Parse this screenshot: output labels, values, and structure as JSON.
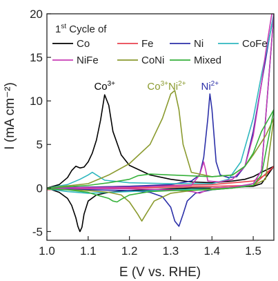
{
  "chart_data": {
    "type": "line",
    "xlabel": "E (V vs. RHE)",
    "ylabel": "I (mA cm⁻²)",
    "xlim": [
      1.0,
      1.55
    ],
    "ylim": [
      -6,
      20
    ],
    "xticks": [
      1.0,
      1.1,
      1.2,
      1.3,
      1.4,
      1.5
    ],
    "xtick_labels": [
      "1.0",
      "1.1",
      "1.2",
      "1.3",
      "1.4",
      "1.5"
    ],
    "yticks": [
      -5,
      0,
      5,
      10,
      15,
      20
    ],
    "ytick_labels": [
      "-5",
      "0",
      "5",
      "10",
      "15",
      "20"
    ],
    "legend": {
      "title_main": "1",
      "title_sup": "st",
      "title_rest": " Cycle of",
      "placement": "top-left"
    },
    "annotations": [
      {
        "text": "Co",
        "sup": "3+",
        "x": 1.14,
        "y": 11.3,
        "color": "#000000"
      },
      {
        "text": "Co",
        "sup": "3+",
        "text2": "Ni",
        "sup2": "2+",
        "x": 1.29,
        "y": 11.3,
        "color": "#8a9a2e"
      },
      {
        "text": "Ni",
        "sup": "2+",
        "x": 1.395,
        "y": 11.3,
        "color": "#2b2fa8"
      }
    ],
    "series": [
      {
        "name": "Co",
        "color": "#000000",
        "x": [
          1.0,
          1.03,
          1.05,
          1.06,
          1.07,
          1.08,
          1.09,
          1.1,
          1.11,
          1.12,
          1.13,
          1.14,
          1.15,
          1.16,
          1.18,
          1.2,
          1.25,
          1.3,
          1.35,
          1.4,
          1.45,
          1.48,
          1.5,
          1.52,
          1.55,
          1.52,
          1.5,
          1.45,
          1.4,
          1.35,
          1.3,
          1.25,
          1.2,
          1.15,
          1.12,
          1.1,
          1.09,
          1.085,
          1.08,
          1.075,
          1.07,
          1.06,
          1.05,
          1.03,
          1.0
        ],
        "y": [
          0.0,
          0.4,
          1.2,
          2.0,
          2.5,
          2.3,
          2.4,
          3.0,
          4.0,
          5.5,
          7.8,
          10.7,
          9.5,
          6.5,
          3.8,
          2.6,
          1.5,
          1.0,
          0.7,
          0.6,
          0.8,
          1.0,
          1.3,
          1.8,
          2.5,
          0.5,
          0.2,
          0.1,
          0.0,
          0.0,
          -0.1,
          -0.2,
          -0.3,
          -0.5,
          -0.8,
          -1.5,
          -3.0,
          -4.5,
          -5.0,
          -4.4,
          -3.4,
          -2.0,
          -1.2,
          -0.5,
          0.0
        ]
      },
      {
        "name": "Fe",
        "color": "#e8434f",
        "x": [
          1.0,
          1.2,
          1.4,
          1.5,
          1.53,
          1.55,
          1.5,
          1.4,
          1.2,
          1.0
        ],
        "y": [
          0.0,
          0.2,
          0.4,
          0.8,
          1.5,
          2.5,
          0.3,
          0.2,
          0.0,
          -0.2
        ]
      },
      {
        "name": "Ni",
        "color": "#2b2fa8",
        "x": [
          1.0,
          1.1,
          1.2,
          1.3,
          1.35,
          1.37,
          1.38,
          1.39,
          1.395,
          1.4,
          1.41,
          1.42,
          1.44,
          1.46,
          1.48,
          1.5,
          1.52,
          1.54,
          1.55,
          1.52,
          1.5,
          1.45,
          1.4,
          1.36,
          1.34,
          1.33,
          1.32,
          1.31,
          1.3,
          1.28,
          1.25,
          1.2,
          1.1,
          1.0
        ],
        "y": [
          0.0,
          0.1,
          0.2,
          0.4,
          0.8,
          1.5,
          3.5,
          8.0,
          10.8,
          9.0,
          3.0,
          1.5,
          1.2,
          1.3,
          2.5,
          6.5,
          12.0,
          17.5,
          20.0,
          2.0,
          0.5,
          0.0,
          -0.2,
          -0.6,
          -1.5,
          -3.0,
          -4.4,
          -3.8,
          -2.2,
          -1.0,
          -0.5,
          -0.3,
          -0.2,
          -0.1
        ]
      },
      {
        "name": "CoFe",
        "color": "#2fb7bf",
        "x": [
          1.0,
          1.05,
          1.08,
          1.1,
          1.11,
          1.12,
          1.14,
          1.2,
          1.3,
          1.4,
          1.44,
          1.47,
          1.5,
          1.52,
          1.54,
          1.55,
          1.52,
          1.5,
          1.45,
          1.4,
          1.3,
          1.2,
          1.1,
          1.05,
          1.0
        ],
        "y": [
          0.0,
          0.4,
          1.0,
          1.5,
          1.8,
          1.5,
          0.9,
          0.6,
          0.5,
          0.5,
          1.0,
          3.0,
          8.0,
          13.0,
          17.5,
          20.0,
          2.0,
          0.5,
          0.0,
          -0.1,
          -0.2,
          -0.4,
          -0.6,
          -0.4,
          -0.1
        ]
      },
      {
        "name": "NiFe",
        "color": "#c83bb4",
        "x": [
          1.0,
          1.2,
          1.35,
          1.37,
          1.38,
          1.385,
          1.39,
          1.42,
          1.45,
          1.48,
          1.5,
          1.52,
          1.53,
          1.545,
          1.55,
          1.52,
          1.5,
          1.45,
          1.4,
          1.37,
          1.35,
          1.3,
          1.2,
          1.0
        ],
        "y": [
          0.0,
          0.1,
          0.3,
          1.5,
          3.0,
          2.0,
          0.8,
          0.7,
          1.0,
          2.5,
          6.0,
          12.0,
          15.5,
          20.0,
          20.0,
          2.0,
          0.5,
          0.1,
          0.0,
          -0.6,
          -0.4,
          -0.2,
          -0.1,
          0.0
        ]
      },
      {
        "name": "CoNi",
        "color": "#8a9a2e",
        "x": [
          1.0,
          1.1,
          1.15,
          1.2,
          1.25,
          1.28,
          1.3,
          1.31,
          1.32,
          1.33,
          1.35,
          1.4,
          1.45,
          1.48,
          1.5,
          1.53,
          1.55,
          1.53,
          1.5,
          1.45,
          1.4,
          1.35,
          1.3,
          1.26,
          1.24,
          1.23,
          1.22,
          1.2,
          1.18,
          1.15,
          1.1,
          1.05,
          1.0
        ],
        "y": [
          0.0,
          0.5,
          1.5,
          2.8,
          5.0,
          8.0,
          10.8,
          11.2,
          9.0,
          5.0,
          1.8,
          1.3,
          1.5,
          2.5,
          3.8,
          6.0,
          8.0,
          1.0,
          0.3,
          0.0,
          -0.1,
          -0.3,
          -0.6,
          -1.5,
          -3.0,
          -3.8,
          -3.0,
          -1.6,
          -0.8,
          -0.5,
          -0.3,
          -0.2,
          -0.1
        ]
      },
      {
        "name": "Mixed",
        "color": "#35b13a",
        "x": [
          1.0,
          1.1,
          1.15,
          1.2,
          1.22,
          1.25,
          1.3,
          1.4,
          1.45,
          1.48,
          1.5,
          1.52,
          1.55,
          1.52,
          1.5,
          1.45,
          1.4,
          1.3,
          1.25,
          1.2,
          1.18,
          1.17,
          1.16,
          1.15,
          1.12,
          1.1,
          1.05,
          1.0
        ],
        "y": [
          0.0,
          0.3,
          0.6,
          1.0,
          1.4,
          1.6,
          1.5,
          1.3,
          1.5,
          2.5,
          4.0,
          6.5,
          9.0,
          1.5,
          0.3,
          0.0,
          -0.2,
          -0.3,
          -0.4,
          -0.8,
          -1.3,
          -1.6,
          -1.5,
          -1.2,
          -0.8,
          -0.5,
          -0.2,
          -0.1
        ]
      }
    ]
  }
}
